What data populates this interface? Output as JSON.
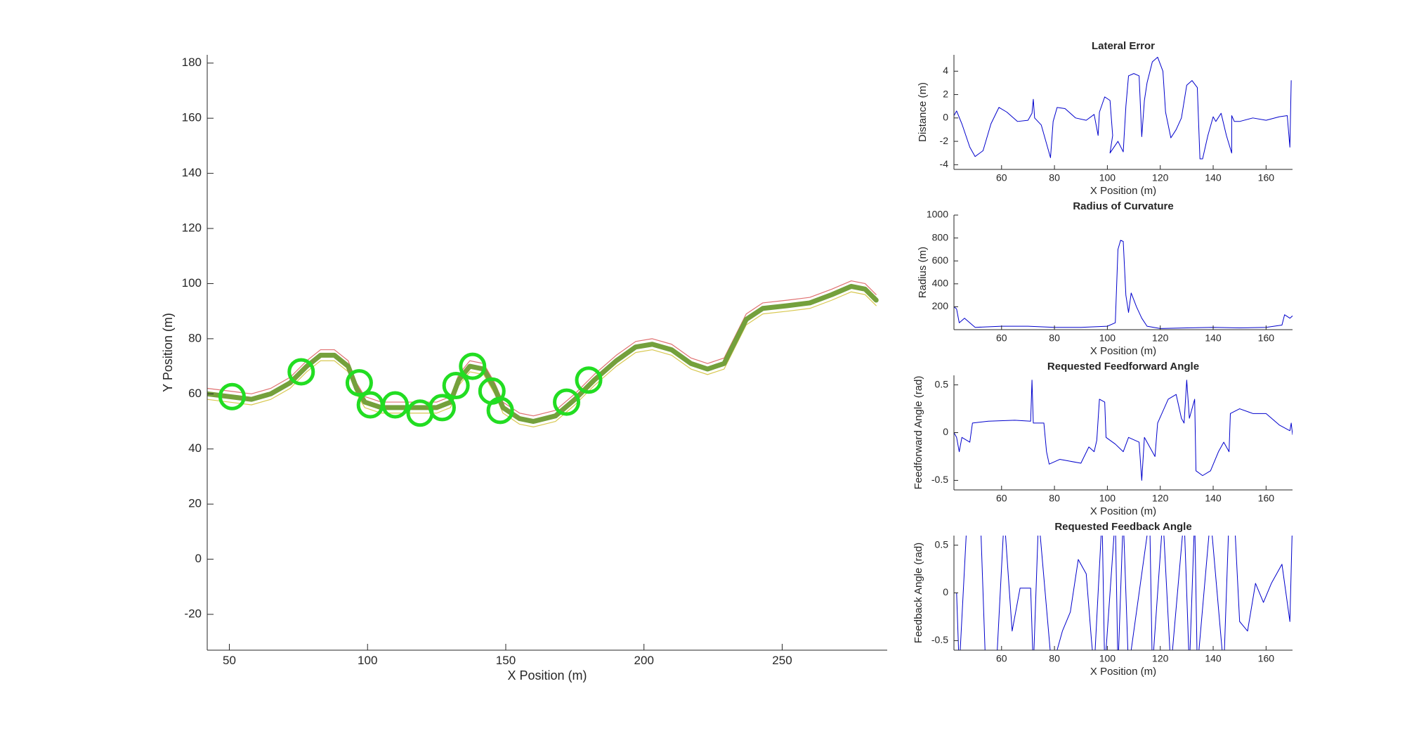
{
  "chart_data": [
    {
      "type": "line",
      "xlabel": "X Position (m)",
      "ylabel": "Y Position (m)",
      "xlim": [
        42,
        288
      ],
      "ylim": [
        -33,
        183
      ],
      "xticks": [
        50,
        100,
        150,
        200,
        250
      ],
      "yticks": [
        -20,
        0,
        20,
        40,
        60,
        80,
        100,
        120,
        140,
        160,
        180
      ],
      "series": [
        {
          "color": "#e07070",
          "linewidth": 1.2,
          "x": [
            42,
            50,
            58,
            65,
            72,
            78,
            83,
            88,
            93,
            96,
            99,
            105,
            115,
            125,
            130,
            133,
            137,
            142,
            146,
            149,
            155,
            160,
            168,
            175,
            182,
            190,
            197,
            203,
            210,
            217,
            223,
            229,
            233,
            237,
            243,
            252,
            260,
            268,
            275,
            280,
            284
          ],
          "values": [
            62,
            61,
            60,
            62,
            66,
            72,
            76,
            76,
            72,
            64,
            59,
            57,
            57,
            57,
            59,
            67,
            72,
            71,
            64,
            57,
            53,
            52,
            54,
            60,
            67,
            74,
            79,
            80,
            78,
            73,
            71,
            73,
            81,
            89,
            93,
            94,
            95,
            98,
            101,
            100,
            96
          ]
        },
        {
          "color": "#d8c850",
          "linewidth": 1.2,
          "x": [
            42,
            50,
            58,
            65,
            72,
            78,
            83,
            88,
            93,
            96,
            99,
            105,
            115,
            125,
            130,
            133,
            137,
            142,
            146,
            149,
            155,
            160,
            168,
            175,
            182,
            190,
            197,
            203,
            210,
            217,
            223,
            229,
            233,
            237,
            243,
            252,
            260,
            268,
            275,
            280,
            284
          ],
          "values": [
            58,
            57,
            56,
            58,
            62,
            68,
            72,
            72,
            68,
            60,
            55,
            53,
            53,
            53,
            55,
            63,
            68,
            67,
            60,
            53,
            49,
            48,
            50,
            56,
            63,
            70,
            75,
            76,
            74,
            69,
            67,
            69,
            77,
            85,
            89,
            90,
            91,
            94,
            97,
            96,
            92
          ]
        },
        {
          "color": "#74a03c",
          "linewidth": 7,
          "x": [
            42,
            50,
            58,
            65,
            72,
            78,
            83,
            88,
            93,
            96,
            99,
            105,
            115,
            125,
            130,
            133,
            137,
            142,
            146,
            149,
            155,
            160,
            168,
            175,
            182,
            190,
            197,
            203,
            210,
            217,
            223,
            229,
            233,
            237,
            243,
            252,
            260,
            268,
            275,
            280,
            284
          ],
          "values": [
            60,
            59,
            58,
            60,
            64,
            70,
            74,
            74,
            70,
            62,
            57,
            55,
            55,
            55,
            57,
            65,
            70,
            69,
            62,
            55,
            51,
            50,
            52,
            58,
            65,
            72,
            77,
            78,
            76,
            71,
            69,
            71,
            79,
            87,
            91,
            92,
            93,
            96,
            99,
            98,
            94
          ]
        },
        {
          "color": "#22dd22",
          "marker": "circle",
          "x": [
            51,
            76,
            97,
            101,
            110,
            119,
            127,
            132,
            138,
            145,
            148,
            172,
            180
          ],
          "values": [
            59,
            68,
            64,
            56,
            56,
            53,
            55,
            63,
            70,
            61,
            54,
            57,
            65
          ]
        }
      ]
    },
    {
      "type": "line",
      "title": "Lateral Error",
      "xlabel": "X Position (m)",
      "ylabel": "Distance (m)",
      "xlim": [
        42,
        170
      ],
      "ylim": [
        -4.4,
        5.4
      ],
      "xticks": [
        60,
        80,
        100,
        120,
        140,
        160
      ],
      "yticks": [
        -4,
        -2,
        0,
        2,
        4
      ],
      "series": [
        {
          "color": "#0000cc",
          "linewidth": 1,
          "x": [
            42,
            43,
            45,
            48,
            50,
            53,
            56,
            59,
            62,
            66,
            70,
            71.5,
            72,
            72.5,
            75,
            77,
            78.5,
            79.5,
            81,
            84,
            88,
            92,
            95,
            96.5,
            97,
            99,
            101,
            102,
            101,
            104,
            106,
            107,
            108,
            110,
            112,
            113,
            114,
            115,
            117,
            119,
            121,
            122,
            124,
            126,
            128,
            130,
            132,
            134,
            135,
            136,
            138,
            140,
            141,
            143,
            145,
            147,
            147,
            148,
            150,
            155,
            160,
            165,
            168,
            169,
            169.5
          ],
          "values": [
            0.2,
            0.6,
            -0.5,
            -2.5,
            -3.3,
            -2.8,
            -0.5,
            0.9,
            0.5,
            -0.3,
            -0.2,
            0.4,
            1.6,
            0,
            -0.6,
            -2.2,
            -3.4,
            -0.3,
            0.9,
            0.8,
            0,
            -0.2,
            0.3,
            -1.5,
            0.5,
            1.8,
            1.5,
            -1.5,
            -3,
            -2,
            -2.9,
            1,
            3.6,
            3.8,
            3.6,
            -1.6,
            1.5,
            3,
            4.8,
            5.2,
            4,
            0.5,
            -1.7,
            -1,
            0,
            2.8,
            3.2,
            2.6,
            -3.5,
            -3.5,
            -1.5,
            0.1,
            -0.3,
            0.4,
            -1.5,
            -3,
            0.2,
            -0.3,
            -0.3,
            0,
            -0.2,
            0.1,
            0.2,
            -2.5,
            3.2
          ]
        }
      ]
    },
    {
      "type": "line",
      "title": "Radius of Curvature",
      "xlabel": "X Position (m)",
      "ylabel": "Radius (m)",
      "xlim": [
        42,
        170
      ],
      "ylim": [
        0,
        1000
      ],
      "xticks": [
        60,
        80,
        100,
        120,
        140,
        160
      ],
      "yticks": [
        200,
        400,
        600,
        800,
        1000
      ],
      "series": [
        {
          "color": "#0000cc",
          "linewidth": 1,
          "x": [
            42,
            43,
            44,
            46,
            50,
            60,
            70,
            80,
            90,
            100,
            103,
            104,
            105,
            106,
            107,
            108,
            109,
            111,
            113,
            115,
            120,
            130,
            140,
            150,
            160,
            166,
            167,
            169,
            170
          ],
          "values": [
            200,
            180,
            60,
            100,
            20,
            30,
            30,
            20,
            20,
            30,
            60,
            700,
            780,
            770,
            300,
            150,
            320,
            200,
            100,
            30,
            10,
            15,
            20,
            15,
            20,
            40,
            130,
            100,
            120
          ]
        }
      ]
    },
    {
      "type": "line",
      "title": "Requested Feedforward Angle",
      "xlabel": "X Position (m)",
      "ylabel": "Feedforward Angle (rad)",
      "xlim": [
        42,
        170
      ],
      "ylim": [
        -0.6,
        0.6
      ],
      "xticks": [
        60,
        80,
        100,
        120,
        140,
        160
      ],
      "yticks": [
        -0.5,
        0,
        0.5
      ],
      "series": [
        {
          "color": "#0000cc",
          "linewidth": 1,
          "x": [
            42,
            43,
            44,
            45,
            48,
            49,
            55,
            65,
            71,
            71.5,
            72,
            76,
            77,
            78,
            82,
            86,
            90,
            93,
            95,
            96,
            97,
            99,
            99.5,
            103,
            106,
            108,
            112,
            113,
            114,
            118,
            119,
            123,
            126,
            128,
            129,
            130,
            131,
            133,
            133.5,
            136,
            139,
            142,
            144,
            146,
            146.5,
            150,
            155,
            160,
            165,
            169,
            169.5,
            170
          ],
          "values": [
            0,
            -0.05,
            -0.2,
            -0.05,
            -0.1,
            0.1,
            0.12,
            0.13,
            0.12,
            0.55,
            0.1,
            0.1,
            -0.2,
            -0.33,
            -0.28,
            -0.3,
            -0.32,
            -0.15,
            -0.2,
            -0.08,
            0.35,
            0.32,
            -0.05,
            -0.12,
            -0.2,
            -0.05,
            -0.1,
            -0.5,
            -0.05,
            -0.25,
            0.1,
            0.35,
            0.4,
            0.15,
            0.1,
            0.55,
            0.15,
            0.35,
            -0.4,
            -0.45,
            -0.4,
            -0.2,
            -0.1,
            -0.2,
            0.2,
            0.25,
            0.2,
            0.2,
            0.08,
            0.02,
            0.1,
            -0.02
          ]
        }
      ]
    },
    {
      "type": "line",
      "title": "Requested Feedback Angle",
      "xlabel": "X Position (m)",
      "ylabel": "Feedback Angle (rad)",
      "xlim": [
        42,
        170
      ],
      "ylim": [
        -0.6,
        0.6
      ],
      "xticks": [
        60,
        80,
        100,
        120,
        140,
        160
      ],
      "yticks": [
        -0.5,
        0,
        0.5
      ],
      "series": [
        {
          "color": "#0000cc",
          "linewidth": 1,
          "x": [
            42,
            43,
            44,
            47,
            52,
            54,
            58,
            61,
            64,
            67,
            70,
            71,
            72,
            74,
            79,
            83,
            86,
            89,
            92,
            94,
            95,
            98,
            99,
            103,
            104,
            106,
            108,
            116,
            117,
            121,
            124,
            129,
            131,
            133,
            134,
            139,
            144,
            146,
            148,
            150,
            153,
            156,
            159,
            162,
            166,
            169,
            170
          ],
          "values": [
            0,
            0,
            -0.8,
            0.8,
            0.8,
            -0.8,
            -0.8,
            0.8,
            -0.4,
            0.05,
            0.05,
            0.05,
            -0.8,
            0.8,
            -0.8,
            -0.4,
            -0.2,
            0.35,
            0.2,
            -0.5,
            -0.8,
            0.8,
            -0.8,
            0.8,
            -0.8,
            0.8,
            -0.8,
            0.8,
            -0.8,
            0.8,
            -0.8,
            0.8,
            -0.8,
            0.8,
            -0.8,
            0.8,
            -0.8,
            0.8,
            0.8,
            -0.3,
            -0.4,
            0.1,
            -0.1,
            0.1,
            0.3,
            -0.3,
            0.8
          ]
        }
      ]
    }
  ]
}
